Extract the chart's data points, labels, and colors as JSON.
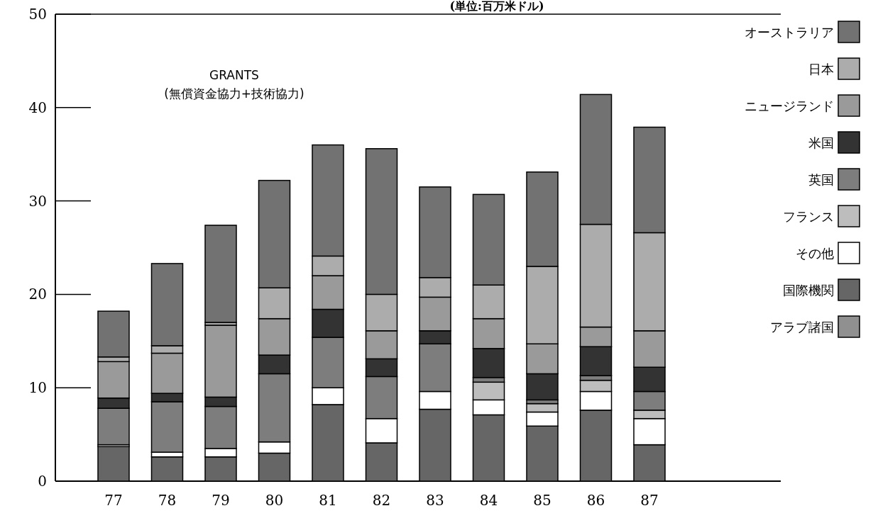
{
  "chart_data": {
    "type": "bar",
    "stacked": true,
    "subtitle": "(単位:百万米ドル)",
    "annotations": [
      "GRANTS\n(無償資金協力+技術協力)"
    ],
    "categories": [
      "77",
      "78",
      "79",
      "80",
      "81",
      "82",
      "83",
      "84",
      "85",
      "86",
      "87"
    ],
    "ylim": [
      0,
      50
    ],
    "yticks": [
      0,
      10,
      20,
      30,
      40,
      50
    ],
    "grid": false,
    "legend": "right",
    "series": [
      {
        "name": "アラブ諸国",
        "color": "#909090",
        "values": [
          0,
          0,
          0,
          0,
          0,
          0,
          0,
          0,
          0,
          0,
          0
        ]
      },
      {
        "name": "国際機関",
        "color": "#666666",
        "values": [
          3.7,
          2.6,
          2.6,
          3.0,
          8.2,
          4.1,
          7.7,
          7.1,
          5.9,
          7.6,
          3.9
        ]
      },
      {
        "name": "その他",
        "color": "#ffffff",
        "values": [
          0.2,
          0.5,
          0.9,
          1.2,
          1.8,
          2.6,
          1.9,
          1.6,
          1.5,
          2.0,
          2.8
        ]
      },
      {
        "name": "フランス",
        "color": "#bdbdbd",
        "values": [
          0,
          0,
          0,
          0,
          0,
          0,
          0,
          1.9,
          0.9,
          1.2,
          0.9
        ]
      },
      {
        "name": "英国",
        "color": "#7d7d7d",
        "values": [
          3.9,
          5.4,
          4.5,
          7.3,
          5.4,
          4.5,
          5.1,
          0.5,
          0.4,
          0.5,
          2.0
        ]
      },
      {
        "name": "米国",
        "color": "#333333",
        "values": [
          1.1,
          0.9,
          1.0,
          2.0,
          3.0,
          1.9,
          1.4,
          3.1,
          2.8,
          3.1,
          2.6
        ]
      },
      {
        "name": "ニュージランド",
        "color": "#9a9a9a",
        "values": [
          3.9,
          4.3,
          7.7,
          3.9,
          3.6,
          3.0,
          3.6,
          3.2,
          3.2,
          2.1,
          3.9
        ]
      },
      {
        "name": "日本",
        "color": "#acacac",
        "values": [
          0.5,
          0.8,
          0.3,
          3.3,
          2.1,
          3.9,
          2.1,
          3.6,
          8.3,
          11.0,
          10.5
        ]
      },
      {
        "name": "オーストラリア",
        "color": "#727272",
        "values": [
          4.9,
          8.8,
          10.4,
          11.5,
          11.9,
          15.6,
          9.7,
          9.7,
          10.1,
          13.9,
          11.3
        ]
      }
    ]
  }
}
